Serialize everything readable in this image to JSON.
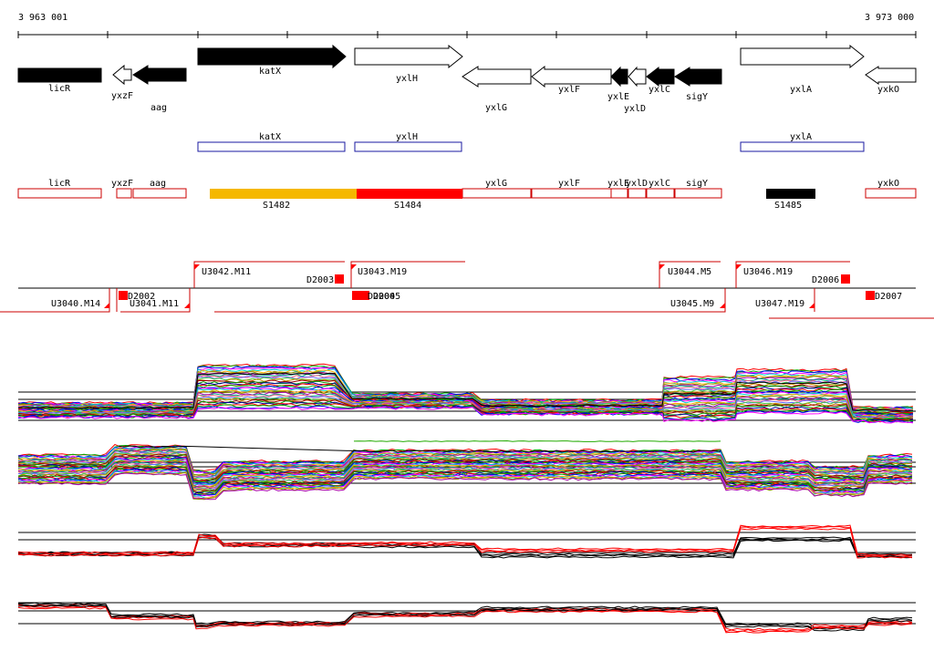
{
  "ruler": {
    "start_label": "3 963 001",
    "end_label": "3 973 000"
  },
  "genes": [
    {
      "name": "licR",
      "strand": "-",
      "fill": "black"
    },
    {
      "name": "yxzF",
      "strand": "-",
      "fill": "white"
    },
    {
      "name": "aag",
      "strand": "-",
      "fill": "black"
    },
    {
      "name": "katX",
      "strand": "+",
      "fill": "black"
    },
    {
      "name": "yxlH",
      "strand": "+",
      "fill": "white"
    },
    {
      "name": "yxlG",
      "strand": "-",
      "fill": "white"
    },
    {
      "name": "yxlF",
      "strand": "-",
      "fill": "white"
    },
    {
      "name": "yxlE",
      "strand": "-",
      "fill": "black"
    },
    {
      "name": "yxlD",
      "strand": "-",
      "fill": "white"
    },
    {
      "name": "yxlC",
      "strand": "-",
      "fill": "black"
    },
    {
      "name": "sigY",
      "strand": "-",
      "fill": "black"
    },
    {
      "name": "yxlA",
      "strand": "+",
      "fill": "white"
    },
    {
      "name": "yxkO",
      "strand": "-",
      "fill": "white"
    }
  ],
  "blue_boxes": [
    "katX",
    "yxlH",
    "yxlA"
  ],
  "red_boxes": [
    "licR",
    "yxzF",
    "aag",
    "yxlG",
    "yxlF",
    "yxlE",
    "yxlD",
    "yxlC",
    "sigY",
    "yxkO"
  ],
  "segments": [
    {
      "label": "S1482",
      "color": "#f5b800"
    },
    {
      "label": "S1484",
      "color": "#ff0000"
    },
    {
      "label": "S1485",
      "color": "#000000"
    }
  ],
  "transcripts": {
    "upper": [
      "U3042.M11",
      "U3043.M19",
      "U3044.M5",
      "U3046.M19"
    ],
    "lower": [
      "U3040.M14",
      "U3041.M11",
      "U3045.M9",
      "U3047.M19"
    ],
    "downshifts": [
      "D2002",
      "D2003",
      "D2004",
      "D2005",
      "D2006",
      "D2007"
    ],
    "d2004_d2005_overlap": "D2005"
  },
  "colors": {
    "gene_box_blue": "#1a1aa0",
    "gene_box_red": "#cc0000",
    "marker_red": "#ff0000"
  }
}
